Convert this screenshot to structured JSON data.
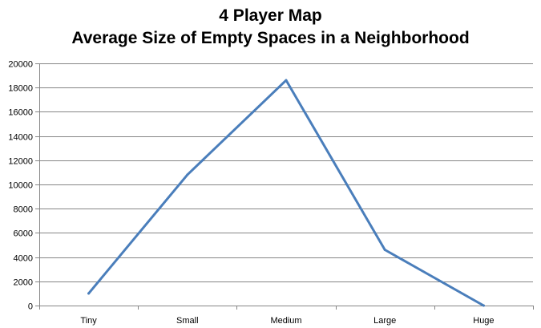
{
  "chart_data": {
    "type": "line",
    "title": "4 Player Map",
    "subtitle": "Average Size of Empty Spaces in a Neighborhood",
    "xlabel": "",
    "ylabel": "",
    "categories": [
      "Tiny",
      "Small",
      "Medium",
      "Large",
      "Huge"
    ],
    "series": [
      {
        "values": [
          1000,
          10800,
          18600,
          4600,
          0
        ]
      }
    ],
    "ylim": [
      0,
      20000
    ],
    "yticks": [
      0,
      2000,
      4000,
      6000,
      8000,
      10000,
      12000,
      14000,
      16000,
      18000,
      20000
    ],
    "grid": true,
    "legend": "none",
    "line_color": "#4a7ebb"
  }
}
